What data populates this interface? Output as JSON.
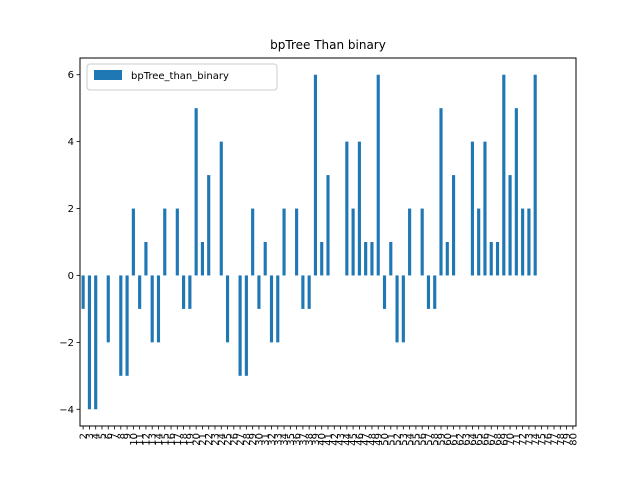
{
  "chart_data": {
    "type": "bar",
    "title": "bpTree Than binary",
    "xlabel": "",
    "ylabel": "",
    "ylim": [
      -4.5,
      6.5
    ],
    "y_ticks": [
      -4,
      -2,
      0,
      2,
      4,
      6
    ],
    "grid": false,
    "legend_position": "top-left",
    "bar_color": "#1f77b4",
    "categories": [
      "2",
      "3",
      "4",
      "5",
      "6",
      "7",
      "8",
      "9",
      "10",
      "11",
      "12",
      "13",
      "14",
      "15",
      "16",
      "17",
      "18",
      "19",
      "20",
      "21",
      "22",
      "23",
      "24",
      "25",
      "26",
      "27",
      "28",
      "29",
      "30",
      "31",
      "32",
      "33",
      "34",
      "35",
      "36",
      "37",
      "38",
      "39",
      "40",
      "41",
      "42",
      "43",
      "44",
      "45",
      "46",
      "47",
      "48",
      "49",
      "50",
      "51",
      "52",
      "53",
      "54",
      "55",
      "56",
      "57",
      "58",
      "59",
      "60",
      "61",
      "62",
      "63",
      "64",
      "65",
      "66",
      "67",
      "68",
      "69",
      "70",
      "71",
      "72",
      "73",
      "74",
      "75",
      "76",
      "77",
      "78",
      "79",
      "80"
    ],
    "series": [
      {
        "name": "bpTree_than_binary",
        "values": [
          -1,
          -4,
          -4,
          0,
          -2,
          0,
          -3,
          -3,
          2,
          -1,
          1,
          -2,
          -2,
          2,
          0,
          2,
          -1,
          -1,
          5,
          1,
          3,
          0,
          4,
          -2,
          0,
          -3,
          -3,
          2,
          -1,
          1,
          -2,
          -2,
          2,
          0,
          2,
          -1,
          -1,
          6,
          1,
          3,
          0,
          0,
          4,
          2,
          4,
          1,
          1,
          6,
          -1,
          1,
          -2,
          -2,
          2,
          0,
          2,
          -1,
          -1,
          5,
          1,
          3,
          0,
          0,
          4,
          2,
          4,
          1,
          1,
          6,
          3,
          5,
          2,
          2,
          6,
          0,
          0,
          0,
          0,
          0,
          0
        ]
      }
    ]
  }
}
